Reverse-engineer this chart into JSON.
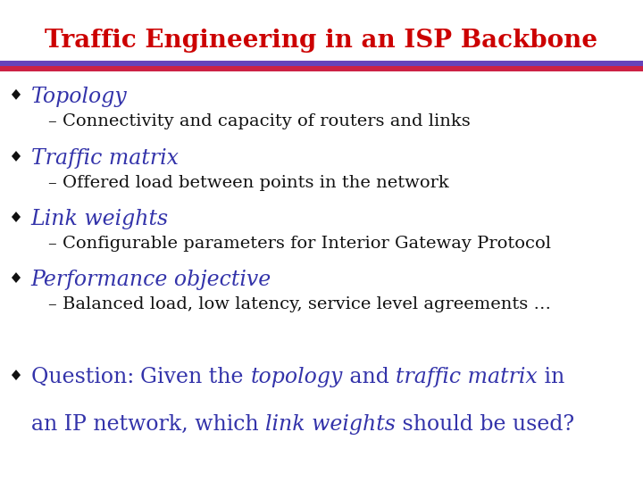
{
  "title": "Traffic Engineering in an ISP Backbone",
  "title_color": "#cc0000",
  "title_fontsize": 20,
  "bg_color": "#ffffff",
  "bullet_color": "#3333aa",
  "bullet_fontsize": 17,
  "sub_fontsize": 14,
  "question_fontsize": 17,
  "items": [
    {
      "bullet": "Topology",
      "sub": "Connectivity and capacity of routers and links"
    },
    {
      "bullet": "Traffic matrix",
      "sub": "Offered load between points in the network"
    },
    {
      "bullet": "Link weights",
      "sub": "Configurable parameters for Interior Gateway Protocol"
    },
    {
      "bullet": "Performance objective",
      "sub": "Balanced load, low latency, service level agreements …"
    }
  ],
  "q_line1_parts": [
    {
      "text": "Question: ",
      "style": "normal",
      "weight": "normal"
    },
    {
      "text": "Given the ",
      "style": "normal",
      "weight": "normal"
    },
    {
      "text": "topology",
      "style": "italic",
      "weight": "normal"
    },
    {
      "text": " and ",
      "style": "normal",
      "weight": "normal"
    },
    {
      "text": "traffic matrix",
      "style": "italic",
      "weight": "normal"
    },
    {
      "text": " in",
      "style": "normal",
      "weight": "normal"
    }
  ],
  "q_line2_parts": [
    {
      "text": "an IP network, which ",
      "style": "normal",
      "weight": "normal"
    },
    {
      "text": "link weights",
      "style": "italic",
      "weight": "normal"
    },
    {
      "text": " should be used?",
      "style": "normal",
      "weight": "normal"
    }
  ],
  "bar_top_color": "#6644bb",
  "bar_bot_color": "#cc2244"
}
